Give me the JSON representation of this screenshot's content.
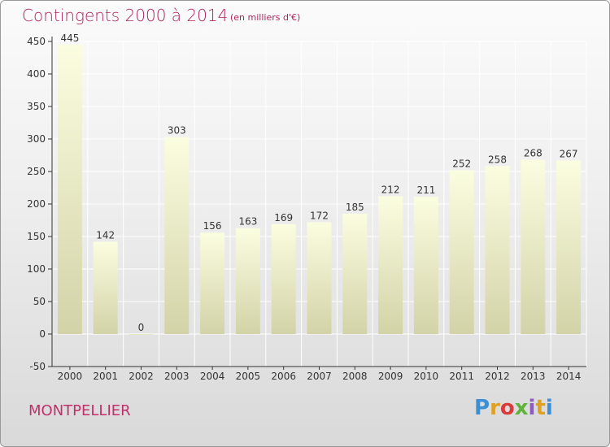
{
  "header": {
    "title": "Contingents 2000 à 2014",
    "subtitle": "(en milliers d'€)"
  },
  "footer": {
    "commune": "MONTPELLIER",
    "logo_text": "Proxiti",
    "logo_colors": [
      "#3a8fd6",
      "#e0a020",
      "#d93b3b",
      "#5fb33a",
      "#8e5bbf",
      "#e0a020",
      "#3a8fd6"
    ]
  },
  "colors": {
    "bar_top": "#fbfde0",
    "bar_bottom": "#d3d3a8",
    "title": "#b0265f",
    "axis": "#333333",
    "grid": "#ffffff"
  },
  "chart_data": {
    "type": "bar",
    "categories": [
      "2000",
      "2001",
      "2002",
      "2003",
      "2004",
      "2005",
      "2006",
      "2007",
      "2008",
      "2009",
      "2010",
      "2011",
      "2012",
      "2013",
      "2014"
    ],
    "values": [
      445,
      142,
      0,
      303,
      156,
      163,
      169,
      172,
      185,
      212,
      211,
      252,
      258,
      268,
      267
    ],
    "ylim": [
      -50,
      450
    ],
    "yticks": [
      -50,
      0,
      50,
      100,
      150,
      200,
      250,
      300,
      350,
      400,
      450
    ],
    "title": "Contingents 2000 à 2014",
    "xlabel": "",
    "ylabel": "",
    "grid": true,
    "data_labels": true
  }
}
